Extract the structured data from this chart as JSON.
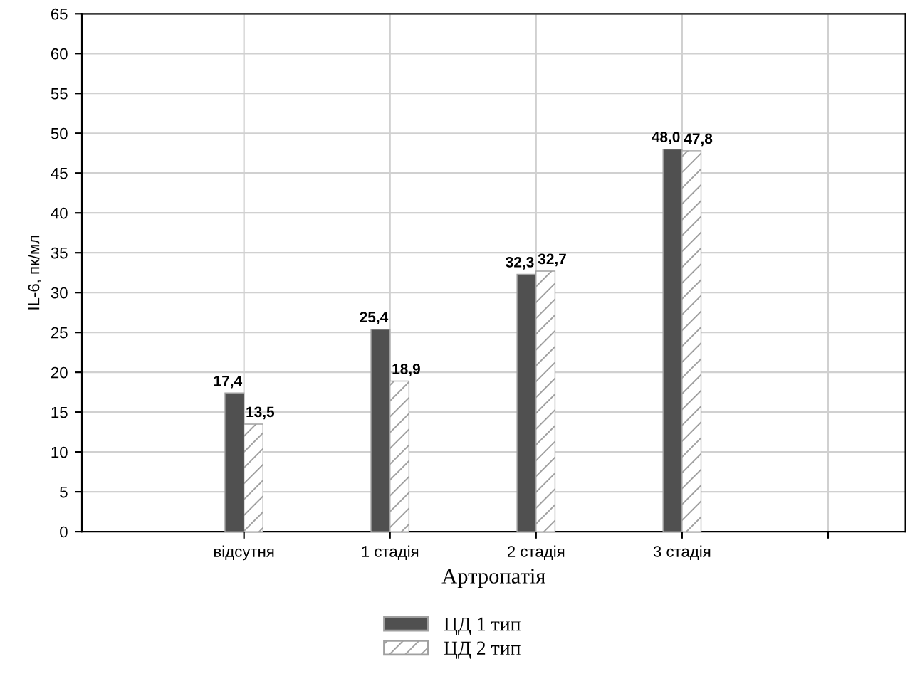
{
  "chart_data": {
    "type": "bar",
    "xlabel": "Артропатія",
    "ylabel": "IL-6, пк/мл",
    "categories": [
      "відсутня",
      "1 стадія",
      "2 стадія",
      "3 стадія",
      null
    ],
    "series": [
      {
        "name": "ЦД 1 тип",
        "color": "#505050",
        "values": [
          17.4,
          25.4,
          32.3,
          48.0,
          null
        ],
        "value_labels": [
          "17,4",
          "25,4",
          "32,3",
          "48,0",
          null
        ]
      },
      {
        "name": "ЦД 2 тип",
        "color": "#a0a0a0",
        "values": [
          13.5,
          18.9,
          32.7,
          47.8,
          null
        ],
        "value_labels": [
          "13,5",
          "18,9",
          "32,7",
          "47,8",
          null
        ]
      }
    ],
    "ylim": [
      0,
      65
    ],
    "yticks": [
      0,
      5,
      10,
      15,
      20,
      25,
      30,
      35,
      40,
      45,
      50,
      55,
      60,
      65
    ],
    "grid": true,
    "legend": "bottom"
  }
}
